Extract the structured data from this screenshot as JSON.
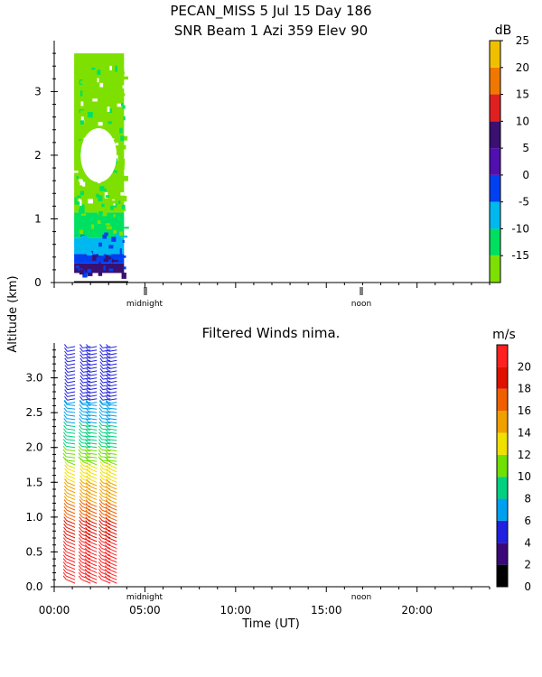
{
  "figure": {
    "title_line1": "PECAN_MISS   5 Jul 15 Day 186",
    "title_line2": "SNR Beam 1 Azi 359 Elev 90",
    "shared_ylabel": "Altitude (km)",
    "marker_midnight": "midnight",
    "marker_noon": "noon"
  },
  "chart_data": [
    {
      "type": "heatmap",
      "title": "SNR Beam 1 Azi 359 Elev 90",
      "ylim": [
        0,
        3.8
      ],
      "yticks": [
        "0",
        "1",
        "2",
        "3"
      ],
      "colorbar": {
        "unit": "dB",
        "labels": [
          "-15",
          "-10",
          "-5",
          "0",
          "5",
          "10",
          "15",
          "20",
          "25"
        ],
        "colors": [
          "#7ee000",
          "#00e060",
          "#00b8f0",
          "#0040f0",
          "#5010b0",
          "#3a1070",
          "#e02020",
          "#f07800",
          "#f0c000"
        ]
      },
      "data_extent": {
        "start_hour": 1.1,
        "end_hour": 3.85
      },
      "layers": [
        {
          "alt_from": 0.15,
          "alt_to": 0.3,
          "snr": 10
        },
        {
          "alt_from": 0.3,
          "alt_to": 0.45,
          "snr": 0
        },
        {
          "alt_from": 0.45,
          "alt_to": 0.7,
          "snr": -5
        },
        {
          "alt_from": 0.7,
          "alt_to": 1.1,
          "snr": -10
        },
        {
          "alt_from": 1.1,
          "alt_to": 3.6,
          "snr": -15
        }
      ]
    },
    {
      "type": "scatter",
      "title": "Filtered Winds nima.",
      "xlabel": "Time (UT)",
      "xlim": [
        0,
        24
      ],
      "xticks": [
        "00:00",
        "05:00",
        "10:00",
        "15:00",
        "20:00"
      ],
      "ylim": [
        0,
        3.5
      ],
      "yticks": [
        "0.0",
        "0.5",
        "1.0",
        "1.5",
        "2.0",
        "2.5",
        "3.0"
      ],
      "colorbar": {
        "unit": "m/s",
        "labels": [
          "0",
          "2",
          "4",
          "6",
          "8",
          "10",
          "12",
          "14",
          "16",
          "18",
          "20"
        ],
        "colors": [
          "#000000",
          "#3a0878",
          "#2020e0",
          "#00a0f0",
          "#00d080",
          "#70e000",
          "#f0e000",
          "#f0a000",
          "#f06000",
          "#e01000",
          "#ff2020"
        ]
      },
      "barb_times_hours": [
        1.25,
        1.9,
        2.45,
        3.0,
        3.55
      ],
      "speed_profile": [
        {
          "alt": 0.05,
          "speed": 20
        },
        {
          "alt": 0.6,
          "speed": 19
        },
        {
          "alt": 1.2,
          "speed": 15
        },
        {
          "alt": 1.6,
          "speed": 12
        },
        {
          "alt": 2.0,
          "speed": 9
        },
        {
          "alt": 2.5,
          "speed": 6
        },
        {
          "alt": 2.8,
          "speed": 4
        },
        {
          "alt": 3.1,
          "speed": 3
        },
        {
          "alt": 3.45,
          "speed": 5
        }
      ]
    }
  ]
}
